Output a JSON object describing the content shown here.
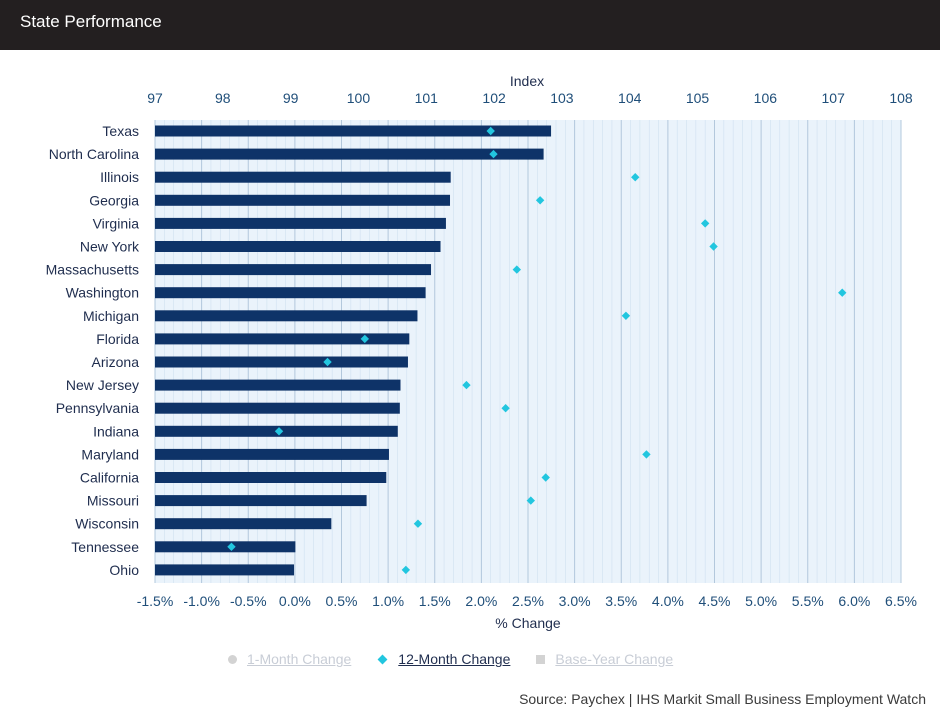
{
  "header": {
    "title": "State Performance"
  },
  "chart_data": {
    "type": "bar",
    "title": "",
    "top_axis_label": "Index",
    "top_axis_ticks": [
      "97",
      "98",
      "99",
      "100",
      "101",
      "102",
      "103",
      "104",
      "105",
      "106",
      "107",
      "108"
    ],
    "top_axis_range": [
      97,
      108
    ],
    "xlabel": "% Change",
    "x_ticks": [
      "-1.5%",
      "-1.0%",
      "-0.5%",
      "0.0%",
      "0.5%",
      "1.0%",
      "1.5%",
      "2.0%",
      "2.5%",
      "3.0%",
      "3.5%",
      "4.0%",
      "4.5%",
      "5.0%",
      "5.5%",
      "6.0%",
      "6.5%"
    ],
    "x_range": [
      -1.5,
      6.5
    ],
    "grid": true,
    "categories": [
      "Texas",
      "North Carolina",
      "Illinois",
      "Georgia",
      "Virginia",
      "New York",
      "Massachusetts",
      "Washington",
      "Michigan",
      "Florida",
      "Arizona",
      "New Jersey",
      "Pennsylvania",
      "Indiana",
      "Maryland",
      "California",
      "Missouri",
      "Wisconsin",
      "Tennessee",
      "Ohio"
    ],
    "series": [
      {
        "name": "Index",
        "type": "bar",
        "axis": "top",
        "color": "#0e3368",
        "values": [
          102.84,
          102.73,
          101.36,
          101.35,
          101.29,
          101.21,
          101.07,
          100.99,
          100.87,
          100.75,
          100.73,
          100.62,
          100.61,
          100.58,
          100.45,
          100.41,
          100.12,
          99.6,
          99.07,
          99.05
        ]
      },
      {
        "name": "12-Month Change",
        "type": "diamond",
        "axis": "bottom",
        "color": "#22c6df",
        "values": [
          2.1,
          2.13,
          3.65,
          2.63,
          4.4,
          4.49,
          2.38,
          5.87,
          3.55,
          0.75,
          0.35,
          1.84,
          2.26,
          -0.17,
          3.77,
          2.69,
          2.53,
          1.32,
          -0.68,
          1.19
        ]
      }
    ],
    "legend": {
      "position": "bottom",
      "items": [
        {
          "label": "1-Month Change",
          "marker": "circle",
          "active": false
        },
        {
          "label": "12-Month Change",
          "marker": "diamond",
          "active": true
        },
        {
          "label": "Base-Year Change",
          "marker": "square",
          "active": false
        }
      ]
    }
  },
  "source": "Source: Paychex | IHS Markit Small Business Employment Watch"
}
